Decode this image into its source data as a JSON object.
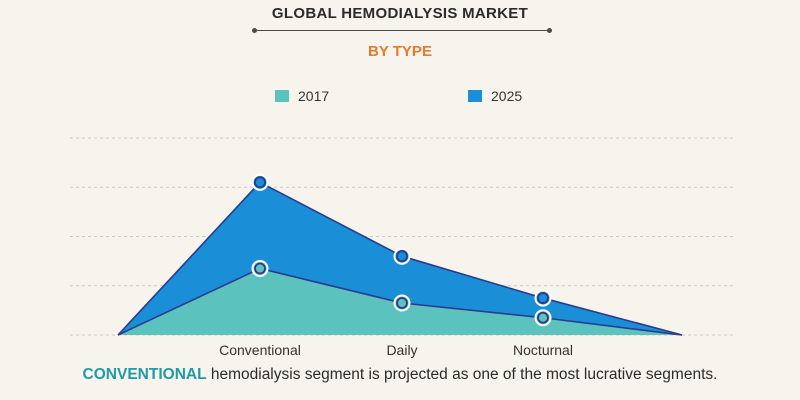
{
  "header": {
    "title": "GLOBAL HEMODIALYSIS MARKET",
    "subtitle": "BY TYPE"
  },
  "caption": {
    "highlight": "CONVENTIONAL",
    "rest": " hemodialysis segment is projected as one of the most lucrative segments."
  },
  "colors": {
    "series_2017": "#5cc2bd",
    "series_2025": "#1a8fd8",
    "line": "#2b3a8f",
    "grid": "#c9c9c9",
    "accent": "#e8792d",
    "highlight": "#1e9ba6"
  },
  "chart_data": {
    "type": "area",
    "title": "GLOBAL HEMODIALYSIS MARKET",
    "subtitle": "BY TYPE",
    "categories": [
      "Conventional",
      "Daily",
      "Nocturnal"
    ],
    "series": [
      {
        "name": "2017",
        "values": [
          1.35,
          0.65,
          0.35
        ]
      },
      {
        "name": "2025",
        "values": [
          3.1,
          1.6,
          0.75
        ]
      }
    ],
    "ylim": [
      0,
      4
    ],
    "grid": true,
    "legend": "top-center",
    "xlabel": "",
    "ylabel": ""
  }
}
